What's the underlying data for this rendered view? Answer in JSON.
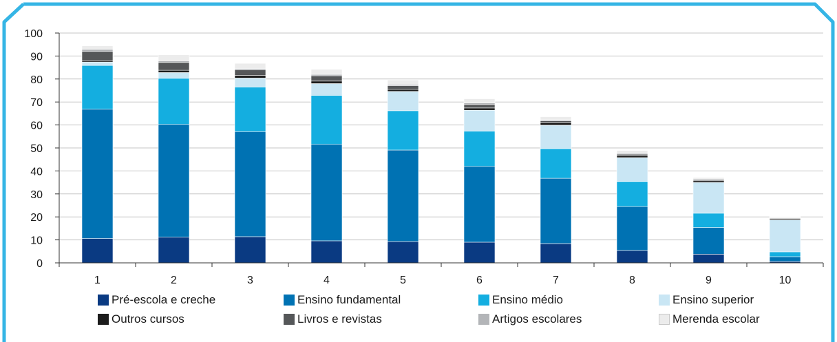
{
  "chart_data": {
    "type": "bar",
    "stacked": true,
    "title": "",
    "xlabel": "",
    "ylabel": "",
    "ylim": [
      0,
      100
    ],
    "yticks": [
      0,
      10,
      20,
      30,
      40,
      50,
      60,
      70,
      80,
      90,
      100
    ],
    "grid": true,
    "legend_position": "bottom",
    "categories": [
      "1",
      "2",
      "3",
      "4",
      "5",
      "6",
      "7",
      "8",
      "9",
      "10"
    ],
    "series": [
      {
        "name": "Pré-escola e creche",
        "color": "#0a3a82",
        "values": [
          10.6,
          11.2,
          11.4,
          9.6,
          9.3,
          9.0,
          8.4,
          5.4,
          3.8,
          0.6
        ]
      },
      {
        "name": "Ensino fundamental",
        "color": "#0072b3",
        "values": [
          56.3,
          49.1,
          45.7,
          42.0,
          39.8,
          33.0,
          28.4,
          19.1,
          11.6,
          2.1
        ]
      },
      {
        "name": "Ensino médio",
        "color": "#14aee0",
        "values": [
          19.0,
          20.0,
          19.4,
          21.3,
          17.1,
          15.3,
          12.9,
          10.9,
          6.2,
          2.1
        ]
      },
      {
        "name": "Ensino superior",
        "color": "#c9e6f4",
        "values": [
          1.5,
          2.5,
          3.9,
          5.1,
          8.4,
          9.1,
          10.2,
          10.4,
          13.4,
          13.9
        ]
      },
      {
        "name": "Outros cursos",
        "color": "#1c1c1c",
        "values": [
          0.8,
          1.0,
          1.2,
          1.1,
          0.9,
          1.0,
          1.0,
          0.8,
          0.7,
          0.5
        ]
      },
      {
        "name": "Livros e revistas",
        "color": "#555759",
        "values": [
          3.8,
          3.4,
          2.4,
          2.3,
          1.6,
          1.5,
          0.9,
          0.7,
          0.5,
          0.3
        ]
      },
      {
        "name": "Artigos escolares",
        "color": "#b3b5b8",
        "values": [
          0.9,
          0.7,
          0.6,
          0.6,
          0.6,
          0.7,
          0.5,
          0.4,
          0.3,
          0.2
        ]
      },
      {
        "name": "Merenda escolar",
        "color": "#ececec",
        "values": [
          1.5,
          2.6,
          2.2,
          2.2,
          1.9,
          1.8,
          1.3,
          1.2,
          0.6,
          0.4
        ]
      }
    ]
  }
}
